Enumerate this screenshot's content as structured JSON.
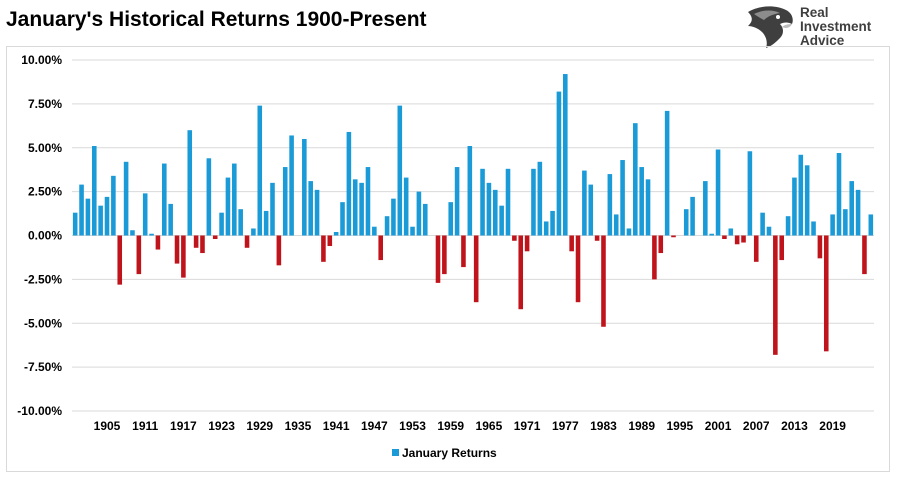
{
  "title": "January's Historical Returns 1900-Present",
  "brand": {
    "line1": "Real",
    "line2": "Investment",
    "line3": "Advice",
    "icon": "eagle-head-logo"
  },
  "colors": {
    "positive": "#1a9bd7",
    "negative": "#c0141c",
    "grid": "#d9d9d9",
    "text": "#000000"
  },
  "chart_data": {
    "type": "bar",
    "title": "January's Historical Returns 1900-Present",
    "xlabel": "",
    "ylabel": "",
    "ylim": [
      -10,
      10
    ],
    "yticks": [
      10,
      7.5,
      5,
      2.5,
      0,
      -2.5,
      -5,
      -7.5,
      -10
    ],
    "ytick_labels": [
      "10.00%",
      "7.50%",
      "5.00%",
      "2.50%",
      "0.00%",
      "-2.50%",
      "-5.00%",
      "-7.50%",
      "-10.00%"
    ],
    "start_year": 1900,
    "xtick_labels": [
      "1905",
      "1911",
      "1917",
      "1923",
      "1929",
      "1935",
      "1941",
      "1947",
      "1953",
      "1959",
      "1965",
      "1971",
      "1977",
      "1983",
      "1989",
      "1995",
      "2001",
      "2007",
      "2013",
      "2019"
    ],
    "legend": {
      "label": "January Returns",
      "position": "bottom-center"
    },
    "series": [
      {
        "name": "January Returns",
        "values": [
          1.3,
          2.9,
          2.1,
          5.1,
          1.7,
          2.2,
          3.4,
          -2.8,
          4.2,
          0.3,
          -2.2,
          2.4,
          0.1,
          -0.8,
          4.1,
          1.8,
          -1.6,
          -2.4,
          6.0,
          -0.7,
          -1.0,
          4.4,
          -0.2,
          1.3,
          3.3,
          4.1,
          1.5,
          -0.7,
          0.4,
          7.4,
          1.4,
          3.0,
          -1.7,
          3.9,
          5.7,
          0.0,
          5.5,
          3.1,
          2.6,
          -1.5,
          -0.6,
          0.2,
          1.9,
          5.9,
          3.2,
          3.0,
          3.9,
          0.5,
          -1.4,
          1.1,
          2.1,
          7.4,
          3.3,
          0.5,
          2.5,
          1.8,
          0.0,
          -2.7,
          -2.2,
          1.9,
          3.9,
          -1.8,
          5.1,
          -3.8,
          3.8,
          3.0,
          2.6,
          1.7,
          3.8,
          -0.3,
          -4.2,
          -0.9,
          3.8,
          4.2,
          0.8,
          1.4,
          8.2,
          9.2,
          -0.9,
          -3.8,
          3.7,
          2.9,
          -0.3,
          -5.2,
          3.5,
          1.2,
          4.3,
          0.4,
          6.4,
          3.9,
          3.2,
          -2.5,
          -1.0,
          7.1,
          -0.1,
          0.0,
          1.5,
          2.2,
          0.0,
          3.1,
          0.1,
          4.9,
          -0.2,
          0.4,
          -0.5,
          -0.4,
          4.8,
          -1.5,
          1.3,
          0.5,
          -6.8,
          -1.4,
          1.1,
          3.3,
          4.6,
          4.0,
          0.8,
          -1.3,
          -6.6,
          1.2,
          4.7,
          1.5,
          3.1,
          2.6,
          -2.2,
          1.2
        ]
      }
    ]
  }
}
